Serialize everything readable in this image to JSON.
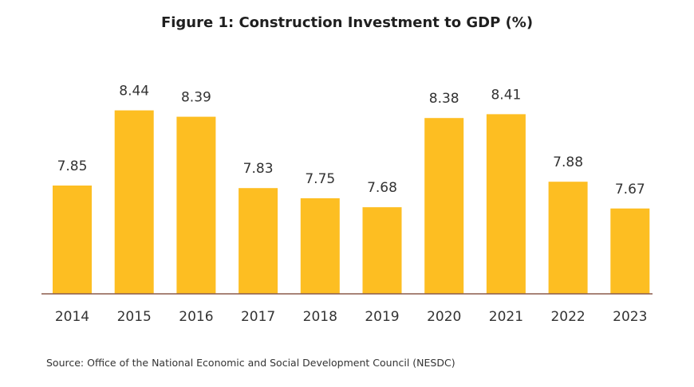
{
  "title": "Figure 1: Construction Investment to GDP (%)",
  "source": "Source: Office of the National Economic and Social Development Council (NESDC)",
  "colors": {
    "bar": "#FDBE22",
    "axis": "#8B5A4A",
    "text": "#333333"
  },
  "chart_data": {
    "type": "bar",
    "title": "Figure 1: Construction Investment to GDP (%)",
    "xlabel": "",
    "ylabel": "",
    "categories": [
      "2014",
      "2015",
      "2016",
      "2017",
      "2018",
      "2019",
      "2020",
      "2021",
      "2022",
      "2023"
    ],
    "values": [
      7.85,
      8.44,
      8.39,
      7.83,
      7.75,
      7.68,
      8.38,
      8.41,
      7.88,
      7.67
    ],
    "data_labels": [
      "7.85",
      "8.44",
      "8.39",
      "7.83",
      "7.75",
      "7.68",
      "8.38",
      "8.41",
      "7.88",
      "7.67"
    ],
    "ylim": [
      7.0,
      8.5
    ],
    "grid": false,
    "legend": "none"
  }
}
